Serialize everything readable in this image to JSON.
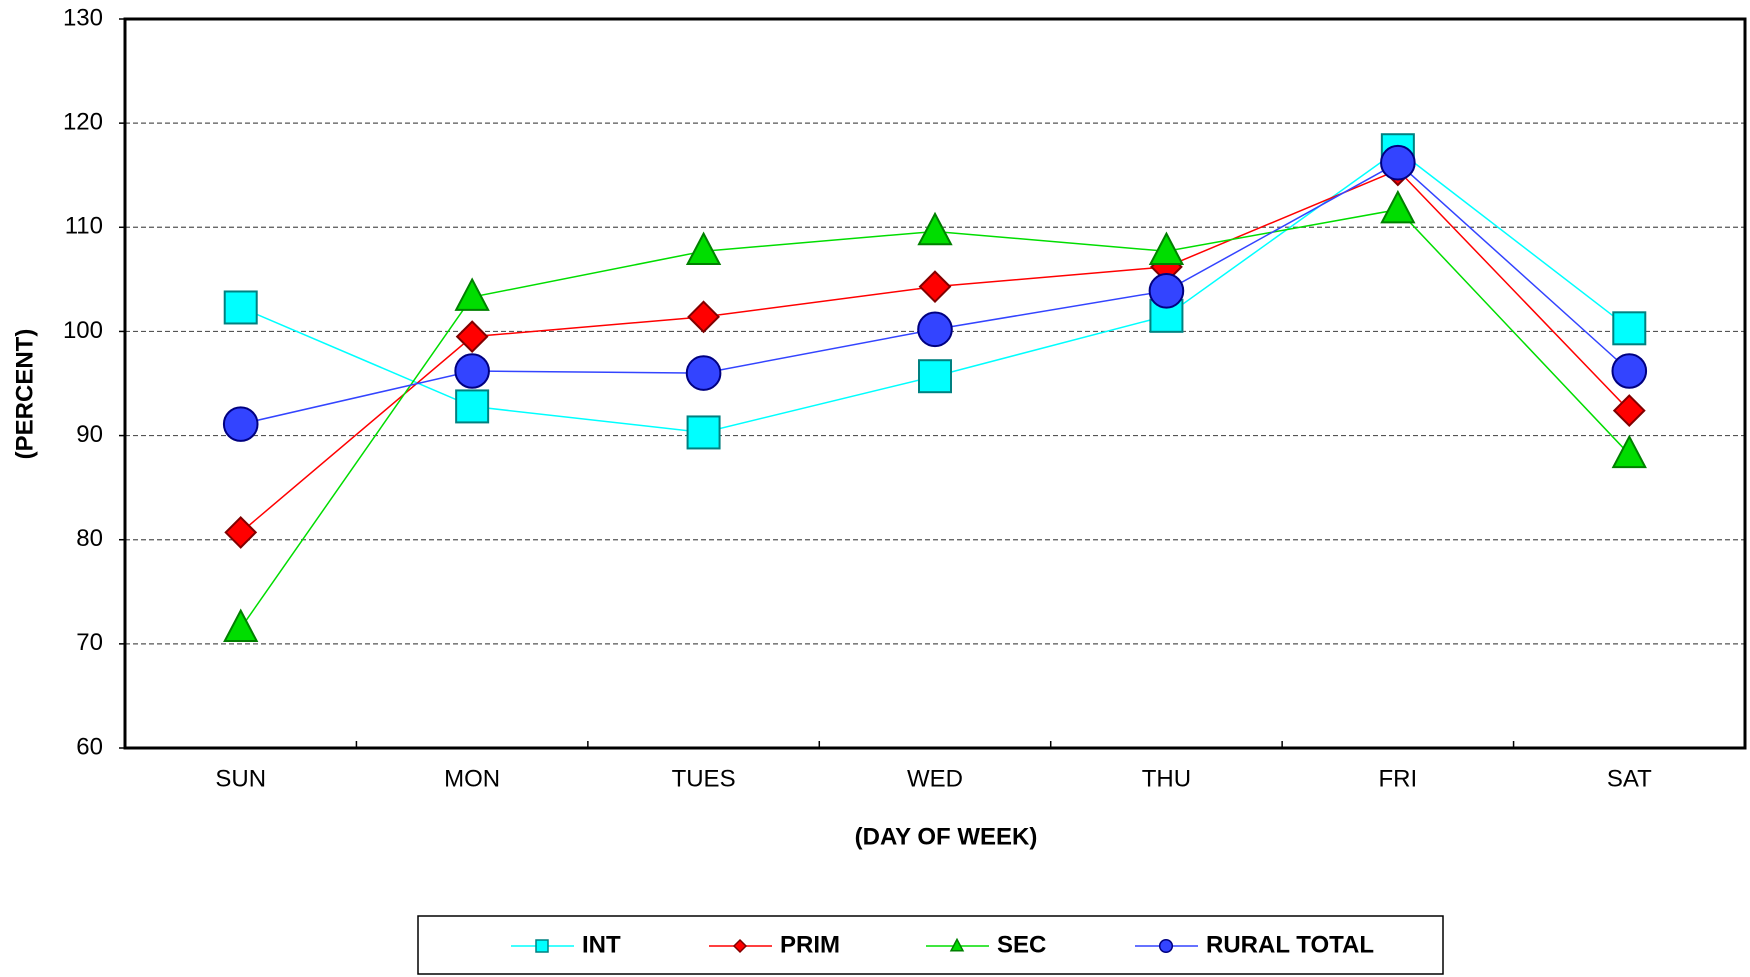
{
  "chart_data": {
    "type": "line",
    "xlabel": "(DAY OF WEEK)",
    "ylabel": "(PERCENT)",
    "categories": [
      "SUN",
      "MON",
      "TUES",
      "WED",
      "THU",
      "FRI",
      "SAT"
    ],
    "series": [
      {
        "name": "INT",
        "color": "#00ffff",
        "edge": "#008080",
        "marker": "square",
        "values": [
          102.3,
          92.8,
          90.3,
          95.7,
          101.5,
          117.4,
          100.3
        ]
      },
      {
        "name": "PRIM",
        "color": "#ff0000",
        "edge": "#800000",
        "marker": "diamond",
        "values": [
          80.7,
          99.5,
          101.4,
          104.3,
          106.2,
          115.5,
          92.4
        ]
      },
      {
        "name": "SEC",
        "color": "#00dd00",
        "edge": "#008000",
        "marker": "triangle",
        "values": [
          71.5,
          103.3,
          107.7,
          109.6,
          107.7,
          111.7,
          88.2
        ]
      },
      {
        "name": "RURAL TOTAL",
        "color": "#3344ff",
        "edge": "#000080",
        "marker": "circle",
        "values": [
          91.1,
          96.2,
          96.0,
          100.2,
          103.9,
          116.2,
          96.2
        ]
      }
    ],
    "ylim": [
      60,
      130
    ],
    "yticks": [
      60,
      70,
      80,
      90,
      100,
      110,
      120,
      130
    ],
    "grid": true,
    "legend": "bottom"
  }
}
